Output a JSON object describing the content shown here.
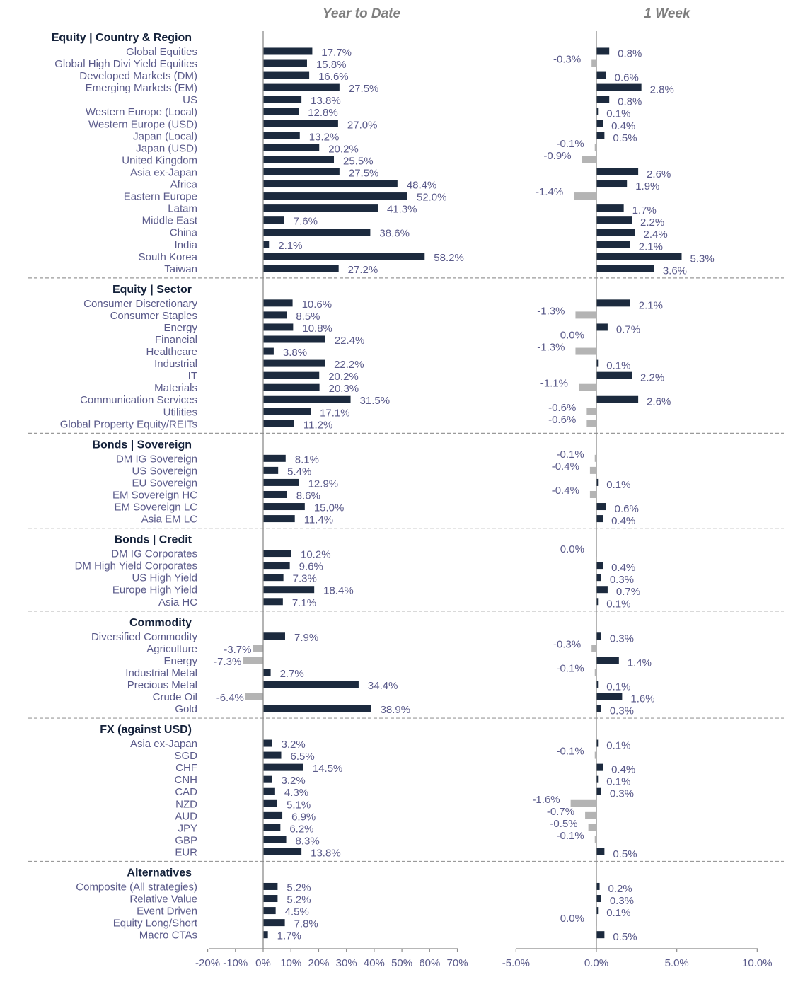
{
  "colors": {
    "positive": "#1c2a3e",
    "negative": "#b4b4b4",
    "label": "#5a5a8a",
    "header": "#14213a",
    "title": "#7f7f7f",
    "axis": "#8c8c8c",
    "separator": "#9a9a9a"
  },
  "chart_data": {
    "type": "bar",
    "orientation": "horizontal",
    "grid": false,
    "panels": [
      {
        "title": "Year to Date",
        "xlim": [
          -20,
          70
        ],
        "ticks": [
          "-20%",
          "-10%",
          "0%",
          "10%",
          "20%",
          "30%",
          "40%",
          "50%",
          "60%",
          "70%"
        ]
      },
      {
        "title": "1 Week",
        "xlim": [
          -5,
          10
        ],
        "ticks": [
          "-5.0%",
          "0.0%",
          "5.0%",
          "10.0%"
        ]
      }
    ],
    "groups": [
      {
        "title": "Equity | Country & Region",
        "rows": [
          {
            "label": "Global Equities",
            "ytd": 17.7,
            "wk": 0.8,
            "ytd_text": "17.7%",
            "wk_text": "0.8%"
          },
          {
            "label": "Global High Divi Yield Equities",
            "ytd": 15.8,
            "wk": -0.3,
            "ytd_text": "15.8%",
            "wk_text": "-0.3%"
          },
          {
            "label": "Developed Markets (DM)",
            "ytd": 16.6,
            "wk": 0.6,
            "ytd_text": "16.6%",
            "wk_text": "0.6%"
          },
          {
            "label": "Emerging Markets (EM)",
            "ytd": 27.5,
            "wk": 2.8,
            "ytd_text": "27.5%",
            "wk_text": "2.8%"
          },
          {
            "label": "US",
            "ytd": 13.8,
            "wk": 0.8,
            "ytd_text": "13.8%",
            "wk_text": "0.8%"
          },
          {
            "label": "Western Europe (Local)",
            "ytd": 12.8,
            "wk": 0.1,
            "ytd_text": "12.8%",
            "wk_text": "0.1%"
          },
          {
            "label": "Western Europe (USD)",
            "ytd": 27.0,
            "wk": 0.4,
            "ytd_text": "27.0%",
            "wk_text": "0.4%"
          },
          {
            "label": "Japan (Local)",
            "ytd": 13.2,
            "wk": 0.5,
            "ytd_text": "13.2%",
            "wk_text": "0.5%"
          },
          {
            "label": "Japan (USD)",
            "ytd": 20.2,
            "wk": -0.1,
            "ytd_text": "20.2%",
            "wk_text": "-0.1%"
          },
          {
            "label": "United Kingdom",
            "ytd": 25.5,
            "wk": -0.9,
            "ytd_text": "25.5%",
            "wk_text": "-0.9%"
          },
          {
            "label": "Asia ex-Japan",
            "ytd": 27.5,
            "wk": 2.6,
            "ytd_text": "27.5%",
            "wk_text": "2.6%"
          },
          {
            "label": "Africa",
            "ytd": 48.4,
            "wk": 1.9,
            "ytd_text": "48.4%",
            "wk_text": "1.9%"
          },
          {
            "label": "Eastern Europe",
            "ytd": 52.0,
            "wk": -1.4,
            "ytd_text": "52.0%",
            "wk_text": "-1.4%"
          },
          {
            "label": "Latam",
            "ytd": 41.3,
            "wk": 1.7,
            "ytd_text": "41.3%",
            "wk_text": "1.7%"
          },
          {
            "label": "Middle East",
            "ytd": 7.6,
            "wk": 2.2,
            "ytd_text": "7.6%",
            "wk_text": "2.2%"
          },
          {
            "label": "China",
            "ytd": 38.6,
            "wk": 2.4,
            "ytd_text": "38.6%",
            "wk_text": "2.4%"
          },
          {
            "label": "India",
            "ytd": 2.1,
            "wk": 2.1,
            "ytd_text": "2.1%",
            "wk_text": "2.1%"
          },
          {
            "label": "South Korea",
            "ytd": 58.2,
            "wk": 5.3,
            "ytd_text": "58.2%",
            "wk_text": "5.3%"
          },
          {
            "label": "Taiwan",
            "ytd": 27.2,
            "wk": 3.6,
            "ytd_text": "27.2%",
            "wk_text": "3.6%"
          }
        ]
      },
      {
        "title": "Equity | Sector",
        "rows": [
          {
            "label": "Consumer Discretionary",
            "ytd": 10.6,
            "wk": 2.1,
            "ytd_text": "10.6%",
            "wk_text": "2.1%"
          },
          {
            "label": "Consumer Staples",
            "ytd": 8.5,
            "wk": -1.3,
            "ytd_text": "8.5%",
            "wk_text": "-1.3%"
          },
          {
            "label": "Energy",
            "ytd": 10.8,
            "wk": 0.7,
            "ytd_text": "10.8%",
            "wk_text": "0.7%"
          },
          {
            "label": "Financial",
            "ytd": 22.4,
            "wk": 0.0,
            "ytd_text": "22.4%",
            "wk_text": "0.0%"
          },
          {
            "label": "Healthcare",
            "ytd": 3.8,
            "wk": -1.3,
            "ytd_text": "3.8%",
            "wk_text": "-1.3%"
          },
          {
            "label": "Industrial",
            "ytd": 22.2,
            "wk": 0.1,
            "ytd_text": "22.2%",
            "wk_text": "0.1%"
          },
          {
            "label": "IT",
            "ytd": 20.2,
            "wk": 2.2,
            "ytd_text": "20.2%",
            "wk_text": "2.2%"
          },
          {
            "label": "Materials",
            "ytd": 20.3,
            "wk": -1.1,
            "ytd_text": "20.3%",
            "wk_text": "-1.1%"
          },
          {
            "label": "Communication Services",
            "ytd": 31.5,
            "wk": 2.6,
            "ytd_text": "31.5%",
            "wk_text": "2.6%"
          },
          {
            "label": "Utilities",
            "ytd": 17.1,
            "wk": -0.6,
            "ytd_text": "17.1%",
            "wk_text": "-0.6%"
          },
          {
            "label": "Global Property Equity/REITs",
            "ytd": 11.2,
            "wk": -0.6,
            "ytd_text": "11.2%",
            "wk_text": "-0.6%"
          }
        ]
      },
      {
        "title": "Bonds | Sovereign",
        "rows": [
          {
            "label": "DM IG Sovereign",
            "ytd": 8.1,
            "wk": -0.1,
            "ytd_text": "8.1%",
            "wk_text": "-0.1%"
          },
          {
            "label": "US Sovereign",
            "ytd": 5.4,
            "wk": -0.4,
            "ytd_text": "5.4%",
            "wk_text": "-0.4%"
          },
          {
            "label": "EU Sovereign",
            "ytd": 12.9,
            "wk": 0.1,
            "ytd_text": "12.9%",
            "wk_text": "0.1%"
          },
          {
            "label": "EM Sovereign HC",
            "ytd": 8.6,
            "wk": -0.4,
            "ytd_text": "8.6%",
            "wk_text": "-0.4%"
          },
          {
            "label": "EM Sovereign LC",
            "ytd": 15.0,
            "wk": 0.6,
            "ytd_text": "15.0%",
            "wk_text": "0.6%"
          },
          {
            "label": "Asia EM LC",
            "ytd": 11.4,
            "wk": 0.4,
            "ytd_text": "11.4%",
            "wk_text": "0.4%"
          }
        ]
      },
      {
        "title": "Bonds | Credit",
        "rows": [
          {
            "label": "DM IG Corporates",
            "ytd": 10.2,
            "wk": 0.0,
            "ytd_text": "10.2%",
            "wk_text": "0.0%"
          },
          {
            "label": "DM High Yield Corporates",
            "ytd": 9.6,
            "wk": 0.4,
            "ytd_text": "9.6%",
            "wk_text": "0.4%"
          },
          {
            "label": "US High Yield",
            "ytd": 7.3,
            "wk": 0.3,
            "ytd_text": "7.3%",
            "wk_text": "0.3%"
          },
          {
            "label": "Europe High Yield",
            "ytd": 18.4,
            "wk": 0.7,
            "ytd_text": "18.4%",
            "wk_text": "0.7%"
          },
          {
            "label": "Asia HC",
            "ytd": 7.1,
            "wk": 0.1,
            "ytd_text": "7.1%",
            "wk_text": "0.1%"
          }
        ]
      },
      {
        "title": "Commodity",
        "rows": [
          {
            "label": "Diversified Commodity",
            "ytd": 7.9,
            "wk": 0.3,
            "ytd_text": "7.9%",
            "wk_text": "0.3%"
          },
          {
            "label": "Agriculture",
            "ytd": -3.7,
            "wk": -0.3,
            "ytd_text": "-3.7%",
            "wk_text": "-0.3%"
          },
          {
            "label": "Energy",
            "ytd": -7.3,
            "wk": 1.4,
            "ytd_text": "-7.3%",
            "wk_text": "1.4%"
          },
          {
            "label": "Industrial Metal",
            "ytd": 2.7,
            "wk": -0.1,
            "ytd_text": "2.7%",
            "wk_text": "-0.1%"
          },
          {
            "label": "Precious Metal",
            "ytd": 34.4,
            "wk": 0.1,
            "ytd_text": "34.4%",
            "wk_text": "0.1%"
          },
          {
            "label": "Crude Oil",
            "ytd": -6.4,
            "wk": 1.6,
            "ytd_text": "-6.4%",
            "wk_text": "1.6%"
          },
          {
            "label": "Gold",
            "ytd": 38.9,
            "wk": 0.3,
            "ytd_text": "38.9%",
            "wk_text": "0.3%"
          }
        ]
      },
      {
        "title": "FX (against USD)",
        "rows": [
          {
            "label": "Asia ex-Japan",
            "ytd": 3.2,
            "wk": 0.1,
            "ytd_text": "3.2%",
            "wk_text": "0.1%"
          },
          {
            "label": "SGD",
            "ytd": 6.5,
            "wk": -0.1,
            "ytd_text": "6.5%",
            "wk_text": "-0.1%"
          },
          {
            "label": "CHF",
            "ytd": 14.5,
            "wk": 0.4,
            "ytd_text": "14.5%",
            "wk_text": "0.4%"
          },
          {
            "label": "CNH",
            "ytd": 3.2,
            "wk": 0.1,
            "ytd_text": "3.2%",
            "wk_text": "0.1%"
          },
          {
            "label": "CAD",
            "ytd": 4.3,
            "wk": 0.3,
            "ytd_text": "4.3%",
            "wk_text": "0.3%"
          },
          {
            "label": "NZD",
            "ytd": 5.1,
            "wk": -1.6,
            "ytd_text": "5.1%",
            "wk_text": "-1.6%"
          },
          {
            "label": "AUD",
            "ytd": 6.9,
            "wk": -0.7,
            "ytd_text": "6.9%",
            "wk_text": "-0.7%"
          },
          {
            "label": "JPY",
            "ytd": 6.2,
            "wk": -0.5,
            "ytd_text": "6.2%",
            "wk_text": "-0.5%"
          },
          {
            "label": "GBP",
            "ytd": 8.3,
            "wk": -0.1,
            "ytd_text": "8.3%",
            "wk_text": "-0.1%"
          },
          {
            "label": "EUR",
            "ytd": 13.8,
            "wk": 0.5,
            "ytd_text": "13.8%",
            "wk_text": "0.5%"
          }
        ]
      },
      {
        "title": "Alternatives",
        "rows": [
          {
            "label": "Composite (All strategies)",
            "ytd": 5.2,
            "wk": 0.2,
            "ytd_text": "5.2%",
            "wk_text": "0.2%"
          },
          {
            "label": "Relative Value",
            "ytd": 5.2,
            "wk": 0.3,
            "ytd_text": "5.2%",
            "wk_text": "0.3%"
          },
          {
            "label": "Event Driven",
            "ytd": 4.5,
            "wk": 0.1,
            "ytd_text": "4.5%",
            "wk_text": "0.1%"
          },
          {
            "label": "Equity Long/Short",
            "ytd": 7.8,
            "wk": 0.0,
            "ytd_text": "7.8%",
            "wk_text": "0.0%"
          },
          {
            "label": "Macro CTAs",
            "ytd": 1.7,
            "wk": 0.5,
            "ytd_text": "1.7%",
            "wk_text": "0.5%"
          }
        ]
      }
    ]
  }
}
